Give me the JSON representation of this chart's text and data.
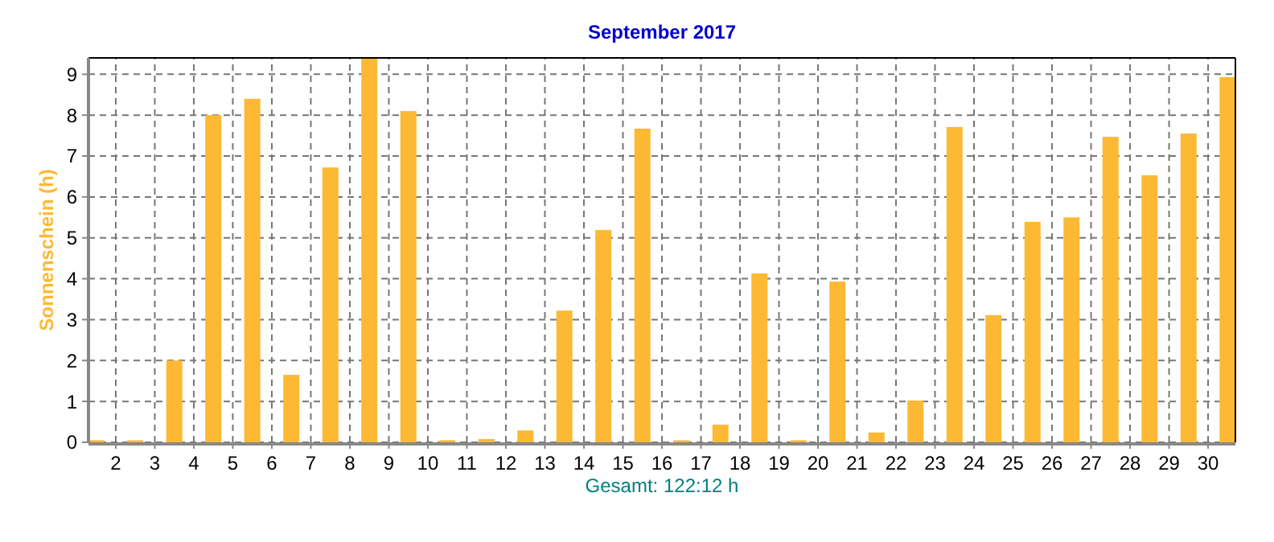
{
  "chart_data": {
    "type": "bar",
    "title": "September 2017",
    "ylabel": "Sonnenschein  (h)",
    "annotations": [
      "Gesamt: 122:12 h"
    ],
    "x": [
      1.5,
      2.5,
      3.5,
      4.5,
      5.5,
      6.5,
      7.5,
      8.5,
      9.5,
      10.5,
      11.5,
      12.5,
      13.5,
      14.5,
      15.5,
      16.5,
      17.5,
      18.5,
      19.5,
      20.5,
      21.5,
      22.5,
      23.5,
      24.5,
      25.5,
      26.5,
      27.5,
      28.5,
      29.5,
      30.5
    ],
    "values": [
      0.05,
      0.05,
      2.0,
      8.0,
      8.4,
      1.65,
      6.72,
      9.4,
      8.1,
      0.05,
      0.08,
      0.29,
      3.22,
      5.19,
      7.67,
      0.05,
      0.43,
      4.13,
      0.05,
      3.93,
      0.24,
      1.02,
      7.71,
      3.11,
      5.39,
      5.5,
      7.47,
      6.53,
      7.55,
      8.93
    ],
    "color": "#fdb933",
    "xlim": [
      1.3,
      30.7
    ],
    "xticks": [
      2,
      3,
      4,
      5,
      6,
      7,
      8,
      9,
      10,
      11,
      12,
      13,
      14,
      15,
      16,
      17,
      18,
      19,
      20,
      21,
      22,
      23,
      24,
      25,
      26,
      27,
      28,
      29,
      30
    ],
    "ylim": [
      0,
      9.4
    ],
    "yticks": [
      0,
      1,
      2,
      3,
      4,
      5,
      6,
      7,
      8,
      9
    ],
    "grid": true
  }
}
